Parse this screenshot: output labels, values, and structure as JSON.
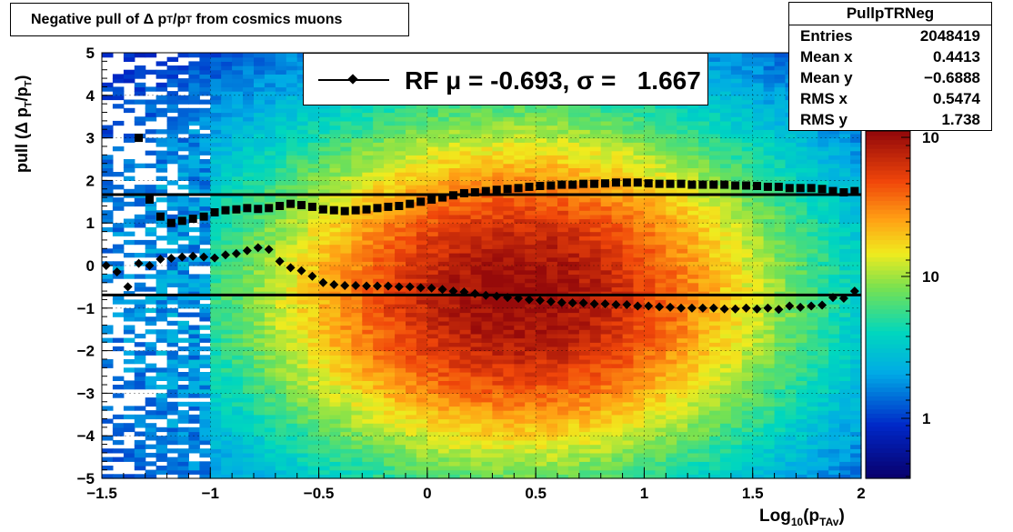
{
  "title": {
    "prefix": "Negative pull of Δ p",
    "sub1": "T",
    "mid": "/p",
    "sub2": "T",
    "suffix": " from cosmics muons"
  },
  "stats": {
    "name": "PullpTRNeg",
    "rows": [
      {
        "label": "Entries",
        "value": "2048419"
      },
      {
        "label": "Mean x",
        "value": "0.4413"
      },
      {
        "label": "Mean y",
        "value": "−0.6888"
      },
      {
        "label": "RMS x",
        "value": "0.5474"
      },
      {
        "label": "RMS y",
        "value": "1.738"
      }
    ]
  },
  "legend": {
    "text": "RF μ = -0.693, σ =   1.667"
  },
  "axes": {
    "ylabel": {
      "pre": "pull (Δ p",
      "sub1": "T",
      "mid": "/p",
      "sub2": "T",
      "post": ")"
    },
    "xlabel": {
      "pre": "Log",
      "sub1": "10",
      "mid": "(p",
      "sub2": "TAv",
      "post": ")"
    },
    "xlim": [
      -1.5,
      2
    ],
    "ylim": [
      -5,
      5
    ],
    "xticks": [
      "−1.5",
      "−1",
      "−0.5",
      "0",
      "0.5",
      "1",
      "1.5",
      "2"
    ],
    "yticks": [
      "5",
      "4",
      "3",
      "2",
      "1",
      "0",
      "−1",
      "−2",
      "−3",
      "−4",
      "−5"
    ],
    "colorbar_labels": [
      "10",
      "10",
      "1"
    ]
  },
  "colors": {
    "marker": "#000000",
    "fit_line": "#000000"
  },
  "chart_data": {
    "type": "heatmap",
    "title": "Negative pull of Δ pT/pT from cosmics muons",
    "xlabel": "Log10(pTAv)",
    "ylabel": "pull (Δ pT/pT)",
    "xlim": [
      -1.5,
      2
    ],
    "ylim": [
      -5,
      5
    ],
    "colorscale": "log",
    "grid": true,
    "legend_position": "top",
    "series": [
      {
        "name": "RF μ = -0.693",
        "marker": "diamond",
        "x": [
          -1.48,
          -1.43,
          -1.38,
          -1.33,
          -1.28,
          -1.23,
          -1.18,
          -1.13,
          -1.08,
          -1.03,
          -0.98,
          -0.93,
          -0.88,
          -0.83,
          -0.78,
          -0.73,
          -0.68,
          -0.63,
          -0.58,
          -0.53,
          -0.48,
          -0.43,
          -0.38,
          -0.33,
          -0.28,
          -0.23,
          -0.18,
          -0.13,
          -0.08,
          -0.03,
          0.02,
          0.07,
          0.12,
          0.17,
          0.22,
          0.27,
          0.32,
          0.37,
          0.42,
          0.47,
          0.52,
          0.57,
          0.62,
          0.67,
          0.72,
          0.77,
          0.82,
          0.87,
          0.92,
          0.97,
          1.02,
          1.07,
          1.12,
          1.17,
          1.22,
          1.27,
          1.32,
          1.37,
          1.42,
          1.47,
          1.52,
          1.57,
          1.62,
          1.67,
          1.72,
          1.77,
          1.82,
          1.87,
          1.92,
          1.97
        ],
        "y": [
          0.0,
          -0.15,
          -0.5,
          0.05,
          0.0,
          0.15,
          0.17,
          0.2,
          0.22,
          0.2,
          0.18,
          0.25,
          0.28,
          0.35,
          0.42,
          0.38,
          0.1,
          -0.05,
          -0.12,
          -0.25,
          -0.4,
          -0.45,
          -0.47,
          -0.47,
          -0.48,
          -0.48,
          -0.48,
          -0.5,
          -0.5,
          -0.52,
          -0.53,
          -0.56,
          -0.6,
          -0.62,
          -0.66,
          -0.7,
          -0.72,
          -0.75,
          -0.77,
          -0.8,
          -0.82,
          -0.85,
          -0.87,
          -0.88,
          -0.88,
          -0.9,
          -0.9,
          -0.92,
          -0.92,
          -0.95,
          -0.95,
          -0.97,
          -0.98,
          -1.0,
          -1.0,
          -1.0,
          -1.0,
          -1.02,
          -1.02,
          -1.0,
          -1.02,
          -1.0,
          -1.03,
          -0.95,
          -0.98,
          -0.95,
          -0.93,
          -0.75,
          -0.77,
          -0.6
        ]
      },
      {
        "name": "RF σ = 1.667",
        "marker": "square",
        "x": [
          -1.48,
          -1.43,
          -1.38,
          -1.33,
          -1.28,
          -1.23,
          -1.18,
          -1.13,
          -1.08,
          -1.03,
          -0.98,
          -0.93,
          -0.88,
          -0.83,
          -0.78,
          -0.73,
          -0.68,
          -0.63,
          -0.58,
          -0.53,
          -0.48,
          -0.43,
          -0.38,
          -0.33,
          -0.28,
          -0.23,
          -0.18,
          -0.13,
          -0.08,
          -0.03,
          0.02,
          0.07,
          0.12,
          0.17,
          0.22,
          0.27,
          0.32,
          0.37,
          0.42,
          0.47,
          0.52,
          0.57,
          0.62,
          0.67,
          0.72,
          0.77,
          0.82,
          0.87,
          0.92,
          0.97,
          1.02,
          1.07,
          1.12,
          1.17,
          1.22,
          1.27,
          1.32,
          1.37,
          1.42,
          1.47,
          1.52,
          1.57,
          1.62,
          1.67,
          1.72,
          1.77,
          1.82,
          1.87,
          1.92,
          1.97
        ],
        "y": [
          null,
          null,
          null,
          3.0,
          1.55,
          1.15,
          1.0,
          1.05,
          1.1,
          1.15,
          1.25,
          1.3,
          1.32,
          1.35,
          1.33,
          1.35,
          1.4,
          1.45,
          1.42,
          1.38,
          1.32,
          1.3,
          1.28,
          1.3,
          1.32,
          1.35,
          1.38,
          1.4,
          1.45,
          1.5,
          1.55,
          1.6,
          1.65,
          1.7,
          1.72,
          1.75,
          1.78,
          1.8,
          1.82,
          1.85,
          1.87,
          1.88,
          1.9,
          1.9,
          1.92,
          1.92,
          1.93,
          1.95,
          1.95,
          1.95,
          1.93,
          1.92,
          1.92,
          1.92,
          1.9,
          1.9,
          1.9,
          1.9,
          1.88,
          1.88,
          1.87,
          1.85,
          1.85,
          1.82,
          1.82,
          1.82,
          1.8,
          1.75,
          1.72,
          1.75
        ]
      }
    ],
    "fit_lines": [
      {
        "name": "mean",
        "y": -0.693
      },
      {
        "name": "sigma",
        "y": 1.667
      }
    ]
  }
}
